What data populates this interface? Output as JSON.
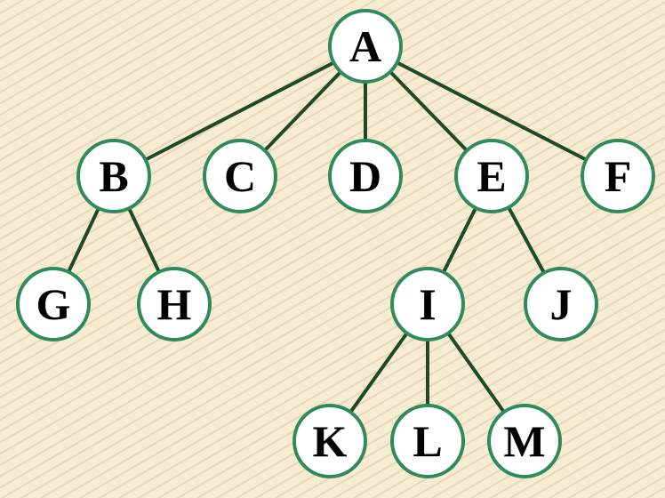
{
  "tree": {
    "nodes": [
      {
        "id": "A",
        "label": "A"
      },
      {
        "id": "B",
        "label": "B"
      },
      {
        "id": "C",
        "label": "C"
      },
      {
        "id": "D",
        "label": "D"
      },
      {
        "id": "E",
        "label": "E"
      },
      {
        "id": "F",
        "label": "F"
      },
      {
        "id": "G",
        "label": "G"
      },
      {
        "id": "H",
        "label": "H"
      },
      {
        "id": "I",
        "label": "I"
      },
      {
        "id": "J",
        "label": "J"
      },
      {
        "id": "K",
        "label": "K"
      },
      {
        "id": "L",
        "label": "L"
      },
      {
        "id": "M",
        "label": "M"
      }
    ],
    "edges": [
      [
        "A",
        "B"
      ],
      [
        "A",
        "C"
      ],
      [
        "A",
        "D"
      ],
      [
        "A",
        "E"
      ],
      [
        "A",
        "F"
      ],
      [
        "B",
        "G"
      ],
      [
        "B",
        "H"
      ],
      [
        "E",
        "I"
      ],
      [
        "E",
        "J"
      ],
      [
        "I",
        "K"
      ],
      [
        "I",
        "L"
      ],
      [
        "I",
        "M"
      ]
    ]
  },
  "colors": {
    "background": "#f7ecd1",
    "node_fill": "#ffffff",
    "node_stroke": "#2f8a5c",
    "edge": "#1f4a26",
    "label": "#000000"
  }
}
